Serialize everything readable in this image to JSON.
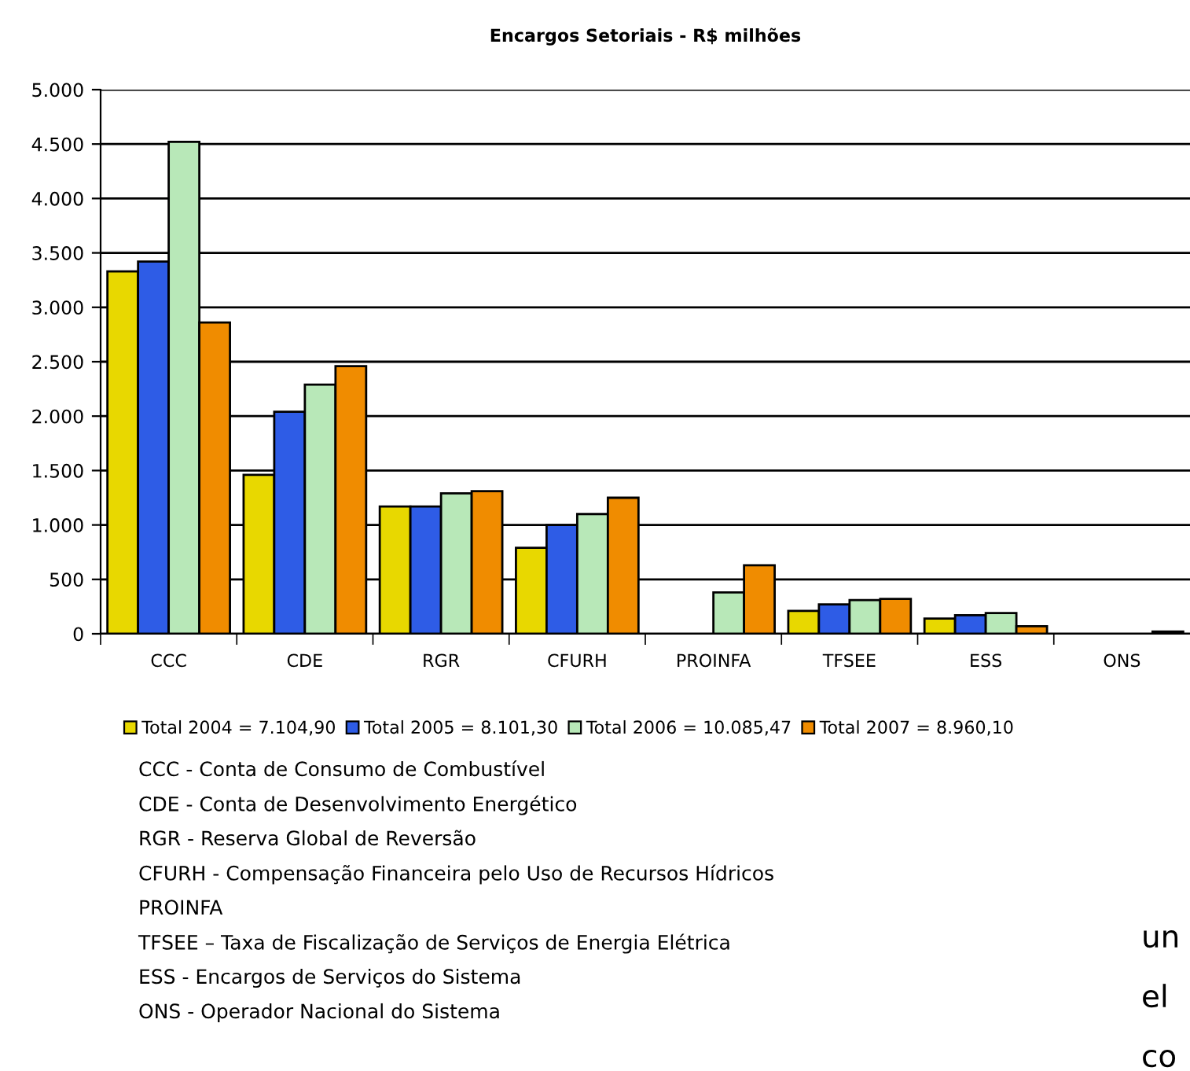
{
  "chart_data": {
    "type": "bar",
    "title": "Encargos Setoriais - R$ milhões",
    "categories": [
      "CCC",
      "CDE",
      "RGR",
      "CFURH",
      "PROINFA",
      "TFSEE",
      "ESS",
      "ONS"
    ],
    "series": [
      {
        "name": "Total 2004 = 7.104,90",
        "color": "#e8d800",
        "values": [
          3330,
          1460,
          1170,
          790,
          null,
          210,
          140,
          null
        ]
      },
      {
        "name": "Total 2005 = 8.101,30",
        "color": "#2e5ce6",
        "values": [
          3420,
          2040,
          1170,
          1000,
          null,
          270,
          170,
          null
        ]
      },
      {
        "name": "Total 2006 = 10.085,47",
        "color": "#b8e8b8",
        "values": [
          4520,
          2290,
          1290,
          1100,
          380,
          310,
          190,
          null
        ]
      },
      {
        "name": "Total 2007 = 8.960,10",
        "color": "#f08c00",
        "values": [
          2860,
          2460,
          1310,
          1250,
          630,
          320,
          70,
          20
        ]
      }
    ],
    "ylim": [
      0,
      5000
    ],
    "yticks": [
      0,
      {
        "value": 500,
        "label": "500"
      },
      {
        "value": 1000,
        "label": "1.000"
      },
      {
        "value": 1500,
        "label": "1.500"
      },
      {
        "value": 2000,
        "label": "2.000"
      },
      {
        "value": 2500,
        "label": "2.500"
      },
      {
        "value": 3000,
        "label": "3.000"
      },
      {
        "value": 3500,
        "label": "3.500"
      },
      {
        "value": 4000,
        "label": "4.000"
      },
      {
        "value": 4500,
        "label": "4.500"
      },
      {
        "value": 5000,
        "label": "5.000"
      }
    ],
    "grid": "y",
    "legend": "bottom",
    "annotations": [
      "CCC - Conta de Consumo de Combustível",
      "CDE - Conta de Desenvolvimento Energético",
      "RGR - Reserva Global de Reversão",
      "CFURH - Compensação Financeira pelo Uso de Recursos Hídricos",
      "PROINFA",
      "TFSEE – Taxa de Fiscalização de Serviços de Energia Elétrica",
      "ESS - Encargos de Serviços do Sistema",
      "ONS - Operador Nacional do Sistema",
      "un",
      "el",
      "co"
    ]
  }
}
